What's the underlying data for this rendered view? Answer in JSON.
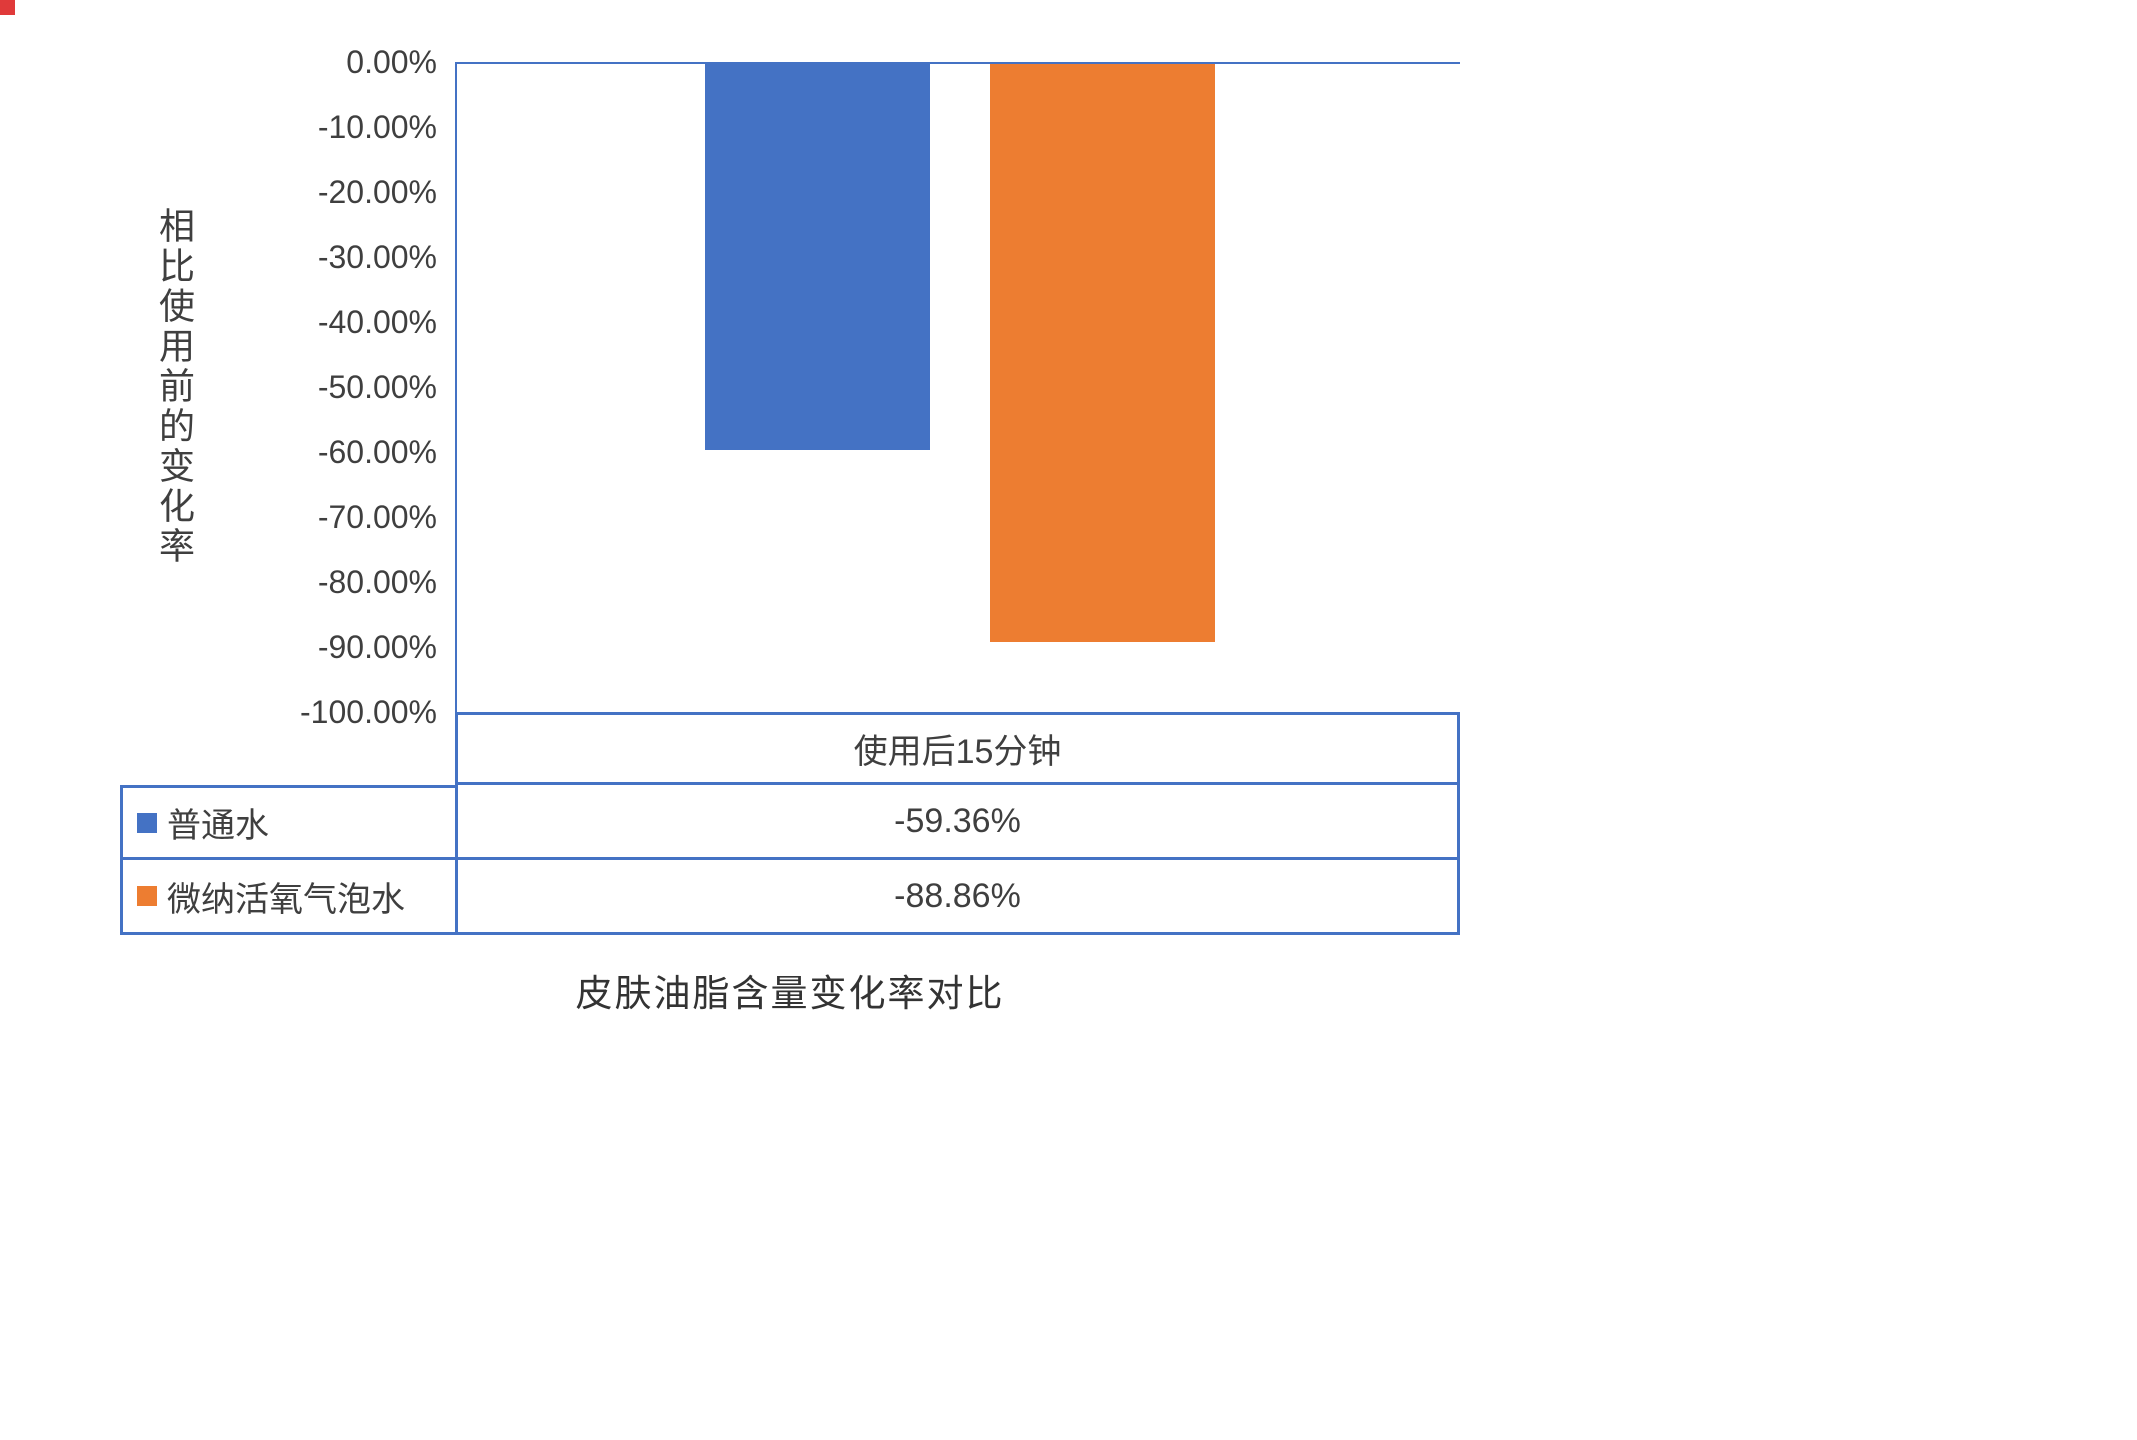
{
  "colors": {
    "series_blue": "#4472C4",
    "series_orange": "#ED7D31",
    "axis_and_table_border": "#4472C4",
    "red_marker": "#e03a3a"
  },
  "chart_data": {
    "type": "bar",
    "title": "皮肤油脂含量变化率对比",
    "categories": [
      "使用后15分钟"
    ],
    "series": [
      {
        "name": "普通水",
        "values": [
          -59.36
        ],
        "value_label": "-59.36%",
        "color": "#4472C4"
      },
      {
        "name": "微纳活氧气泡水",
        "values": [
          -88.86
        ],
        "value_label": "-88.86%",
        "color": "#ED7D31"
      }
    ],
    "ylabel": "相比使用前的变化率",
    "ylim": [
      -100,
      0
    ],
    "ytick_step": 10,
    "yticks": [
      "0.00%",
      "-10.00%",
      "-20.00%",
      "-30.00%",
      "-40.00%",
      "-50.00%",
      "-60.00%",
      "-70.00%",
      "-80.00%",
      "-90.00%",
      "-100.00%"
    ],
    "grid": false,
    "legend_position": "data-table-left",
    "data_table_header": "使用后15分钟"
  }
}
